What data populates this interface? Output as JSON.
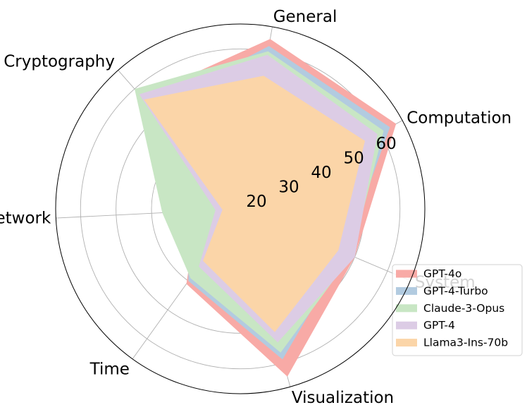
{
  "chart_data": {
    "type": "radar",
    "axes": [
      "General",
      "Computation",
      "System",
      "Visualization",
      "Time",
      "Network",
      "Cryptography"
    ],
    "radial_ticks": [
      20,
      30,
      40,
      50,
      60
    ],
    "rlim": [
      15,
      67
    ],
    "grid": true,
    "legend_position": "lower-right",
    "series": [
      {
        "name": "GPT-4o",
        "color": "#f8aaa6",
        "values": [
          63.5,
          65,
          50,
          64,
          41,
          27,
          57
        ]
      },
      {
        "name": "GPT-4-Turbo",
        "color": "#b2cbe0",
        "values": [
          61.5,
          63,
          47,
          59,
          40,
          30,
          53
        ]
      },
      {
        "name": "Claude-3-Opus",
        "color": "#c8e6c4",
        "values": [
          60,
          61,
          49,
          57,
          39,
          37,
          60
        ]
      },
      {
        "name": "GPT-4",
        "color": "#dccce5",
        "values": [
          59,
          59,
          50,
          54,
          35,
          22,
          58
        ]
      },
      {
        "name": "Llama3-Ins-70b",
        "color": "#fbd5a8",
        "values": [
          53,
          55,
          45,
          51,
          33,
          20,
          56
        ]
      }
    ]
  }
}
